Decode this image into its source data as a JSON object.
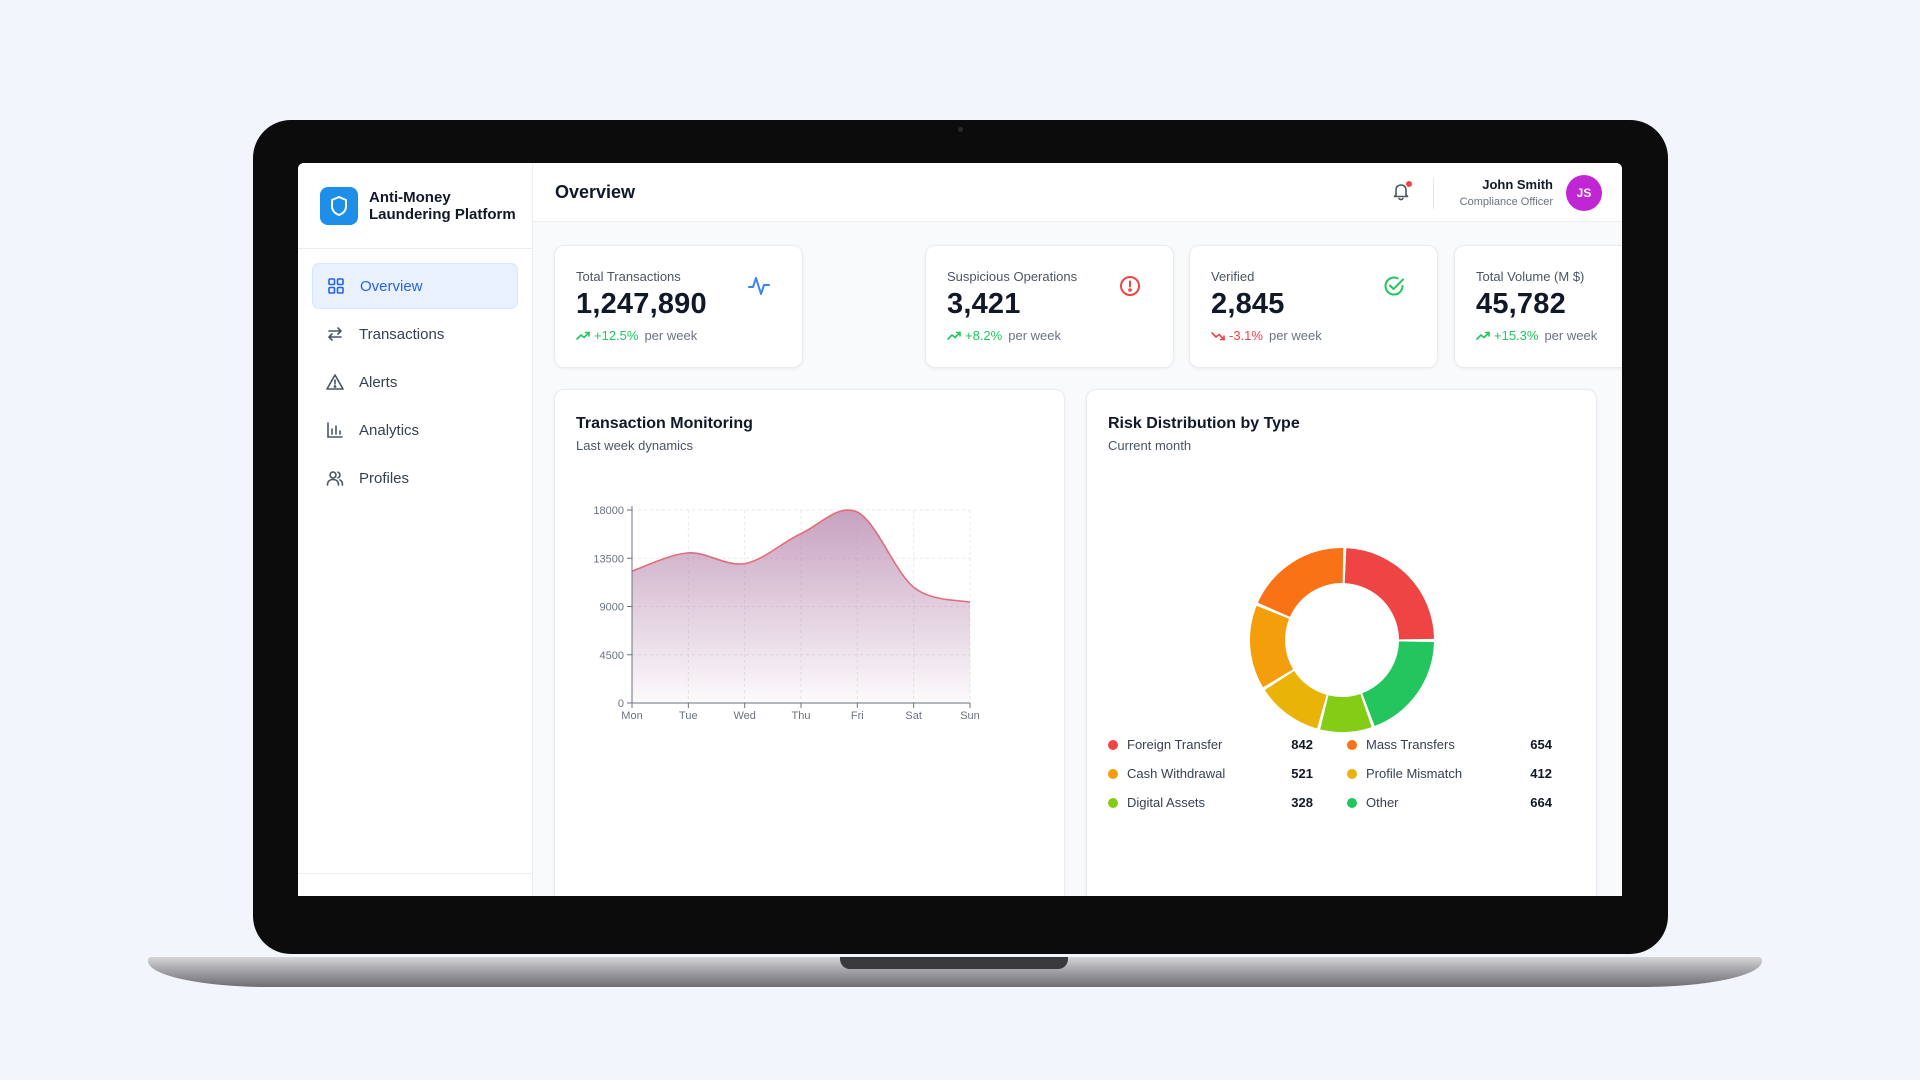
{
  "app": {
    "name": "Anti-Money Laundering Platform"
  },
  "sidebar": {
    "items": [
      {
        "label": "Overview",
        "icon": "grid-icon",
        "active": true
      },
      {
        "label": "Transactions",
        "icon": "arrows-left-right-icon",
        "active": false
      },
      {
        "label": "Alerts",
        "icon": "warning-triangle-icon",
        "active": false
      },
      {
        "label": "Analytics",
        "icon": "bar-chart-icon",
        "active": false
      },
      {
        "label": "Profiles",
        "icon": "users-icon",
        "active": false
      }
    ]
  },
  "header": {
    "title": "Overview",
    "notification_icon": "bell-icon",
    "user": {
      "name": "John Smith",
      "role": "Compliance Officer",
      "initials": "JS"
    }
  },
  "stats": [
    {
      "label": "Total Transactions",
      "value": "1,247,890",
      "trend": "+12.5%",
      "period": "per week",
      "direction": "up",
      "icon": "activity-icon",
      "icon_color": "#3b82f6"
    },
    {
      "label": "Suspicious Operations",
      "value": "3,421",
      "trend": "+8.2%",
      "period": "per week",
      "direction": "up",
      "icon": "alert-circle-icon",
      "icon_color": "#ef4444"
    },
    {
      "label": "Verified",
      "value": "2,845",
      "trend": "-3.1%",
      "period": "per week",
      "direction": "down",
      "icon": "check-circle-icon",
      "icon_color": "#22c55e"
    },
    {
      "label": "Total Volume (M $)",
      "value": "45,782",
      "trend": "+15.3%",
      "period": "per week",
      "direction": "up",
      "icon": "dollar-icon",
      "icon_color": "#a855f7"
    }
  ],
  "monitoring": {
    "title": "Transaction Monitoring",
    "subtitle": "Last week dynamics"
  },
  "risk": {
    "title": "Risk Distribution by Type",
    "subtitle": "Current month"
  },
  "colors": {
    "accent": "#2563eb",
    "positive": "#22c55e",
    "negative": "#ef4444",
    "area_stroke": "#e26d7a",
    "area_fill": "#b98ab0"
  },
  "chart_data": [
    {
      "type": "area",
      "categories": [
        "Mon",
        "Tue",
        "Wed",
        "Thu",
        "Fri",
        "Sat",
        "Sun"
      ],
      "series": [
        {
          "values": [
            12300,
            14000,
            13000,
            15800,
            17800,
            10800,
            9400
          ]
        }
      ],
      "yticks": [
        0,
        4500,
        9000,
        13500,
        18000
      ],
      "ylim": [
        0,
        18000
      ],
      "grid": true
    },
    {
      "type": "pie",
      "donut": true,
      "slices": [
        {
          "label": "Foreign Transfer",
          "value": 842,
          "color": "#ef4444"
        },
        {
          "label": "Mass Transfers",
          "value": 654,
          "color": "#f97316"
        },
        {
          "label": "Cash Withdrawal",
          "value": 521,
          "color": "#f59e0b"
        },
        {
          "label": "Profile Mismatch",
          "value": 412,
          "color": "#eab308"
        },
        {
          "label": "Digital Assets",
          "value": 328,
          "color": "#84cc16"
        },
        {
          "label": "Other",
          "value": 664,
          "color": "#22c55e"
        }
      ]
    }
  ]
}
